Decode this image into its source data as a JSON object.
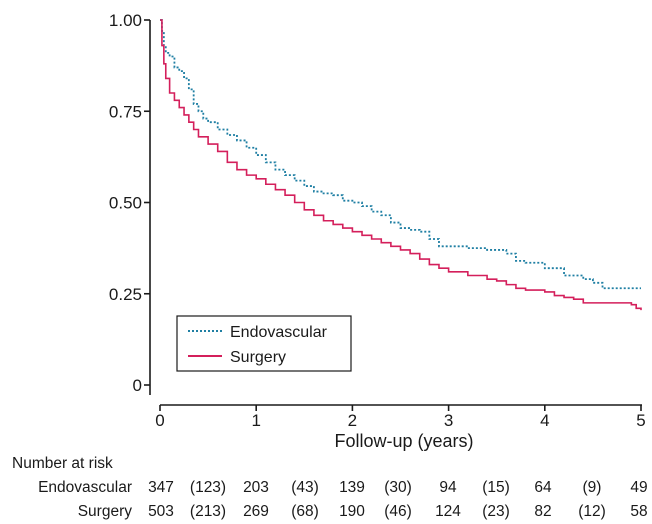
{
  "chart_data": {
    "type": "line",
    "xlabel": "Follow-up (years)",
    "ylabel": "",
    "xlim": [
      0,
      5
    ],
    "ylim": [
      0,
      1
    ],
    "x_ticks": [
      "0",
      "1",
      "2",
      "3",
      "4",
      "5"
    ],
    "y_ticks": [
      "0",
      "0.25",
      "0.50",
      "0.75",
      "1.00"
    ],
    "grid": false,
    "legend_position": "bottom-left",
    "series": [
      {
        "name": "Endovascular",
        "color": "#1f7fa3",
        "style": "dotted",
        "points": [
          [
            0,
            1.0
          ],
          [
            0.02,
            0.97
          ],
          [
            0.04,
            0.93
          ],
          [
            0.06,
            0.91
          ],
          [
            0.1,
            0.9
          ],
          [
            0.15,
            0.87
          ],
          [
            0.2,
            0.86
          ],
          [
            0.25,
            0.84
          ],
          [
            0.3,
            0.81
          ],
          [
            0.35,
            0.77
          ],
          [
            0.4,
            0.75
          ],
          [
            0.45,
            0.73
          ],
          [
            0.5,
            0.72
          ],
          [
            0.6,
            0.7
          ],
          [
            0.7,
            0.685
          ],
          [
            0.8,
            0.67
          ],
          [
            0.9,
            0.65
          ],
          [
            1.0,
            0.63
          ],
          [
            1.1,
            0.61
          ],
          [
            1.2,
            0.59
          ],
          [
            1.3,
            0.575
          ],
          [
            1.4,
            0.56
          ],
          [
            1.5,
            0.545
          ],
          [
            1.6,
            0.53
          ],
          [
            1.7,
            0.525
          ],
          [
            1.8,
            0.52
          ],
          [
            1.9,
            0.505
          ],
          [
            2.0,
            0.5
          ],
          [
            2.1,
            0.49
          ],
          [
            2.2,
            0.475
          ],
          [
            2.3,
            0.465
          ],
          [
            2.4,
            0.445
          ],
          [
            2.5,
            0.43
          ],
          [
            2.6,
            0.425
          ],
          [
            2.7,
            0.42
          ],
          [
            2.8,
            0.4
          ],
          [
            2.9,
            0.38
          ],
          [
            3.0,
            0.38
          ],
          [
            3.2,
            0.375
          ],
          [
            3.4,
            0.37
          ],
          [
            3.6,
            0.36
          ],
          [
            3.7,
            0.34
          ],
          [
            3.8,
            0.335
          ],
          [
            4.0,
            0.32
          ],
          [
            4.2,
            0.3
          ],
          [
            4.4,
            0.29
          ],
          [
            4.5,
            0.28
          ],
          [
            4.6,
            0.265
          ],
          [
            4.8,
            0.265
          ],
          [
            5.0,
            0.265
          ]
        ]
      },
      {
        "name": "Surgery",
        "color": "#d41f5b",
        "style": "solid",
        "points": [
          [
            0,
            1.0
          ],
          [
            0.02,
            0.93
          ],
          [
            0.04,
            0.88
          ],
          [
            0.06,
            0.84
          ],
          [
            0.1,
            0.8
          ],
          [
            0.15,
            0.78
          ],
          [
            0.2,
            0.76
          ],
          [
            0.25,
            0.74
          ],
          [
            0.3,
            0.72
          ],
          [
            0.35,
            0.7
          ],
          [
            0.4,
            0.68
          ],
          [
            0.5,
            0.66
          ],
          [
            0.6,
            0.64
          ],
          [
            0.7,
            0.61
          ],
          [
            0.8,
            0.59
          ],
          [
            0.9,
            0.575
          ],
          [
            1.0,
            0.565
          ],
          [
            1.1,
            0.55
          ],
          [
            1.2,
            0.535
          ],
          [
            1.3,
            0.52
          ],
          [
            1.4,
            0.5
          ],
          [
            1.5,
            0.48
          ],
          [
            1.6,
            0.465
          ],
          [
            1.7,
            0.45
          ],
          [
            1.8,
            0.44
          ],
          [
            1.9,
            0.43
          ],
          [
            2.0,
            0.42
          ],
          [
            2.1,
            0.41
          ],
          [
            2.2,
            0.4
          ],
          [
            2.3,
            0.39
          ],
          [
            2.4,
            0.38
          ],
          [
            2.5,
            0.37
          ],
          [
            2.6,
            0.36
          ],
          [
            2.7,
            0.345
          ],
          [
            2.8,
            0.33
          ],
          [
            2.9,
            0.32
          ],
          [
            3.0,
            0.31
          ],
          [
            3.2,
            0.3
          ],
          [
            3.4,
            0.29
          ],
          [
            3.5,
            0.285
          ],
          [
            3.6,
            0.275
          ],
          [
            3.7,
            0.265
          ],
          [
            3.8,
            0.26
          ],
          [
            4.0,
            0.255
          ],
          [
            4.1,
            0.245
          ],
          [
            4.2,
            0.24
          ],
          [
            4.3,
            0.235
          ],
          [
            4.4,
            0.225
          ],
          [
            4.6,
            0.225
          ],
          [
            4.8,
            0.225
          ],
          [
            4.9,
            0.22
          ],
          [
            4.95,
            0.21
          ],
          [
            5.0,
            0.205
          ]
        ]
      }
    ],
    "risk_table": {
      "title": "Number at risk",
      "rows": [
        {
          "label": "Endovascular",
          "values": [
            "347",
            "(123)",
            "203",
            "(43)",
            "139",
            "(30)",
            "94",
            "(15)",
            "64",
            "(9)",
            "49"
          ]
        },
        {
          "label": "Surgery",
          "values": [
            "503",
            "(213)",
            "269",
            "(68)",
            "190",
            "(46)",
            "124",
            "(23)",
            "82",
            "(12)",
            "58"
          ]
        }
      ]
    }
  }
}
